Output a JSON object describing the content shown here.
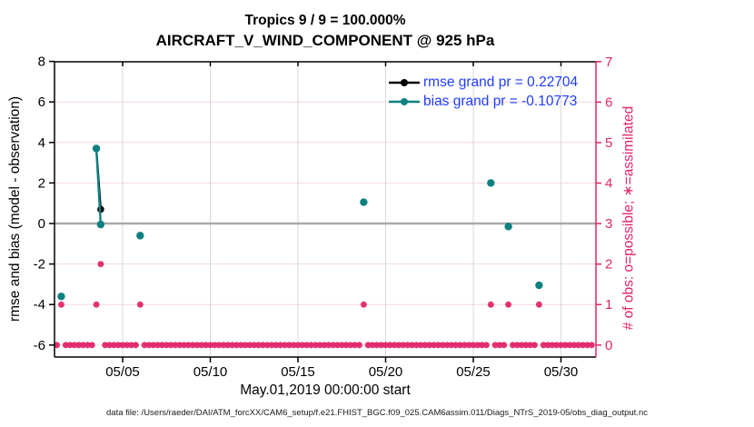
{
  "figure": {
    "title_line1": "Tropics 9 / 9 = 100.000%",
    "title_line2": "AIRCRAFT_V_WIND_COMPONENT @ 925 hPa",
    "caption": "data file: /Users/raeder/DAI/ATM_forcXX/CAM6_setup/f.e21.FHIST_BGC.f09_025.CAM6assim.011/Diags_NTrS_2019-05/obs_diag_output.nc"
  },
  "colors": {
    "rmse": "#000000",
    "bias": "#0e8080",
    "obs_pink": "#e2246a",
    "legend_text": "#1f3cff",
    "zero_line": "#a9a9a9",
    "v_gridline": "#d9d9d9",
    "h_gridline": "#f3d9e2",
    "frame": "#000000"
  },
  "chart_data": {
    "type": "line",
    "title": "Tropics 9 / 9 = 100.000% — AIRCRAFT_V_WIND_COMPONENT @ 925 hPa",
    "x_axis": {
      "label": "May.01,2019 00:00:00 start",
      "tick_days": [
        5,
        10,
        15,
        20,
        25,
        30
      ],
      "tick_labels": [
        "05/05",
        "05/10",
        "05/15",
        "05/20",
        "05/25",
        "05/30"
      ],
      "range_days": [
        1.11,
        32.0
      ]
    },
    "left_axis": {
      "label": "rmse and bias (model - observation)",
      "ticks": [
        8,
        6,
        4,
        2,
        0,
        -2,
        -4,
        -6
      ],
      "gridline_values": [
        6,
        4,
        2,
        -2,
        -4,
        -6
      ],
      "range": [
        -6.6,
        8
      ]
    },
    "right_axis": {
      "label": "# of obs: o=possible; ∗=assimilated",
      "ticks": [
        7,
        6,
        5,
        4,
        3,
        2,
        1,
        0
      ],
      "range": [
        -0.3,
        7
      ]
    },
    "legend": [
      {
        "series": "rmse",
        "label": "rmse grand pr = 0.22704",
        "color": "#000000"
      },
      {
        "series": "bias",
        "label": "bias grand pr = -0.10773",
        "color": "#0e8080"
      }
    ],
    "series": [
      {
        "name": "rmse",
        "color": "#000000",
        "points": [
          [
            3.5,
            3.7
          ],
          [
            3.75,
            0.7
          ]
        ],
        "connected": true
      },
      {
        "name": "bias",
        "color": "#0e8080",
        "points": [
          [
            1.5,
            -3.6
          ],
          [
            3.5,
            3.7
          ],
          [
            3.75,
            -0.05
          ],
          [
            6.0,
            -0.6
          ],
          [
            18.75,
            1.05
          ],
          [
            26.0,
            2.0
          ],
          [
            27.0,
            -0.15
          ],
          [
            28.75,
            -3.05
          ]
        ],
        "line_between_days": [
          [
            3.5,
            3.75
          ]
        ]
      }
    ],
    "obs_counts": {
      "marker": "asterisk-in-circle",
      "color": "#e2246a",
      "bin_start_day": 1.25,
      "bin_end_day": 31.75,
      "bin_step_days": 0.25,
      "default_count": 0,
      "nonzero": [
        [
          1.5,
          1
        ],
        [
          3.5,
          1
        ],
        [
          3.75,
          2
        ],
        [
          6.0,
          1
        ],
        [
          18.75,
          1
        ],
        [
          26.0,
          1
        ],
        [
          27.0,
          1
        ],
        [
          28.75,
          1
        ]
      ]
    }
  }
}
